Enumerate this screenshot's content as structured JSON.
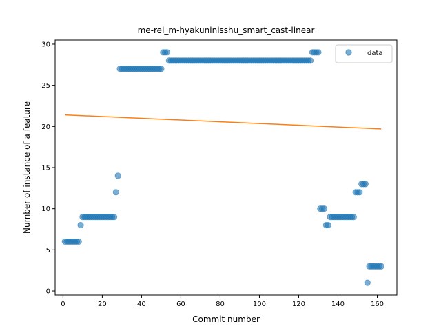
{
  "chart_data": {
    "type": "scatter",
    "title": "me-rei_m-hyakuninisshu_smart_cast-linear",
    "xlabel": "Commit number",
    "ylabel": "Number of instance of a feature",
    "xlim": [
      -4,
      170
    ],
    "ylim": [
      -0.5,
      30.5
    ],
    "xticks": [
      0,
      20,
      40,
      60,
      80,
      100,
      120,
      140,
      160
    ],
    "yticks": [
      0,
      5,
      10,
      15,
      20,
      25,
      30
    ],
    "legend": {
      "position": "top-right",
      "entries": [
        "data"
      ]
    },
    "colors": {
      "data": "#1f77b4",
      "fit": "#ff7f0e"
    },
    "scatter_segments": [
      {
        "x_start": 1,
        "x_end": 8,
        "y": 6
      },
      {
        "x_start": 9,
        "x_end": 9,
        "y": 8
      },
      {
        "x_start": 10,
        "x_end": 26,
        "y": 9
      },
      {
        "x_start": 27,
        "x_end": 27,
        "y": 12
      },
      {
        "x_start": 28,
        "x_end": 28,
        "y": 14
      },
      {
        "x_start": 29,
        "x_end": 50,
        "y": 27
      },
      {
        "x_start": 51,
        "x_end": 53,
        "y": 29
      },
      {
        "x_start": 54,
        "x_end": 126,
        "y": 28
      },
      {
        "x_start": 127,
        "x_end": 130,
        "y": 29
      },
      {
        "x_start": 131,
        "x_end": 133,
        "y": 10
      },
      {
        "x_start": 134,
        "x_end": 135,
        "y": 8
      },
      {
        "x_start": 136,
        "x_end": 148,
        "y": 9
      },
      {
        "x_start": 149,
        "x_end": 151,
        "y": 12
      },
      {
        "x_start": 152,
        "x_end": 154,
        "y": 13
      },
      {
        "x_start": 155,
        "x_end": 155,
        "y": 1
      },
      {
        "x_start": 156,
        "x_end": 162,
        "y": 3
      }
    ],
    "fit_line": {
      "x": [
        1,
        162
      ],
      "y": [
        21.4,
        19.7
      ]
    }
  }
}
